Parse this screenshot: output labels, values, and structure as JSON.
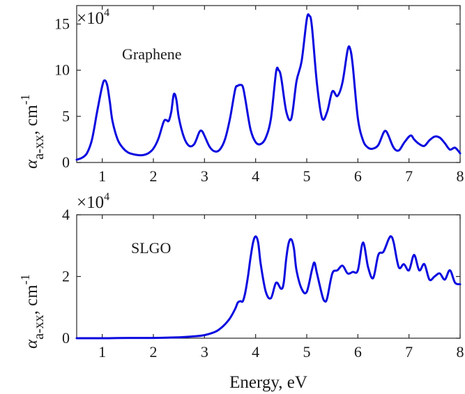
{
  "figure": {
    "xlabel": "Energy, eV"
  },
  "chart_data": [
    {
      "type": "line",
      "panel_label": "Graphene",
      "ylabel": {
        "main": "α",
        "subscript": "a-xx",
        "suffix": ", cm",
        "superscript": "-1"
      },
      "y_scale_text": {
        "base": "×10",
        "exponent": "4"
      },
      "xlim": [
        0.5,
        8
      ],
      "ylim": [
        0,
        17
      ],
      "x_ticks": [
        1,
        2,
        3,
        4,
        5,
        6,
        7,
        8
      ],
      "x_tick_labels": [
        "1",
        "2",
        "3",
        "4",
        "5",
        "6",
        "7",
        "8"
      ],
      "y_ticks": [
        0,
        5,
        10,
        15
      ],
      "y_tick_labels": [
        "0",
        "5",
        "10",
        "15"
      ],
      "grid": false,
      "color": "#0a0ae0",
      "x": [
        0.5,
        0.6,
        0.7,
        0.8,
        0.9,
        1.0,
        1.05,
        1.1,
        1.15,
        1.2,
        1.3,
        1.4,
        1.5,
        1.6,
        1.7,
        1.8,
        1.9,
        2.0,
        2.1,
        2.2,
        2.25,
        2.3,
        2.35,
        2.4,
        2.45,
        2.5,
        2.6,
        2.7,
        2.8,
        2.9,
        2.95,
        3.0,
        3.1,
        3.2,
        3.3,
        3.4,
        3.5,
        3.6,
        3.65,
        3.7,
        3.75,
        3.8,
        3.9,
        4.0,
        4.1,
        4.2,
        4.3,
        4.4,
        4.45,
        4.5,
        4.6,
        4.7,
        4.8,
        4.9,
        5.0,
        5.05,
        5.1,
        5.2,
        5.3,
        5.4,
        5.5,
        5.6,
        5.7,
        5.8,
        5.85,
        5.9,
        6.0,
        6.1,
        6.2,
        6.3,
        6.4,
        6.5,
        6.55,
        6.6,
        6.7,
        6.8,
        6.9,
        7.0,
        7.05,
        7.1,
        7.2,
        7.3,
        7.4,
        7.5,
        7.6,
        7.7,
        7.8,
        7.9,
        8.0
      ],
      "y": [
        0.3,
        0.5,
        1.0,
        2.5,
        5.5,
        8.3,
        8.9,
        8.3,
        6.5,
        4.5,
        2.5,
        1.6,
        1.1,
        0.9,
        0.8,
        0.8,
        1.0,
        1.5,
        2.6,
        4.4,
        4.6,
        4.5,
        5.5,
        7.4,
        6.8,
        4.8,
        2.7,
        1.8,
        2.0,
        3.3,
        3.4,
        2.9,
        1.7,
        1.2,
        1.4,
        2.5,
        4.8,
        7.9,
        8.3,
        8.4,
        8.2,
        6.8,
        3.6,
        2.2,
        2.0,
        2.7,
        4.8,
        9.8,
        10.0,
        9.2,
        5.5,
        4.8,
        8.8,
        11.0,
        15.5,
        15.9,
        14.8,
        8.5,
        4.8,
        5.5,
        7.7,
        7.2,
        8.7,
        12.2,
        12.3,
        10.5,
        4.8,
        2.4,
        1.6,
        1.5,
        1.9,
        3.2,
        3.4,
        2.9,
        1.6,
        1.3,
        2.1,
        2.8,
        2.9,
        2.5,
        2.0,
        1.8,
        2.4,
        2.8,
        2.7,
        2.1,
        1.4,
        1.6,
        1.0
      ]
    },
    {
      "type": "line",
      "panel_label": "SLGO",
      "ylabel": {
        "main": "α",
        "subscript": "a-xx",
        "suffix": ", cm",
        "superscript": "-1"
      },
      "y_scale_text": {
        "base": "×10",
        "exponent": "4"
      },
      "xlim": [
        0.5,
        8
      ],
      "ylim": [
        0,
        4
      ],
      "x_ticks": [
        1,
        2,
        3,
        4,
        5,
        6,
        7,
        8
      ],
      "x_tick_labels": [
        "1",
        "2",
        "3",
        "4",
        "5",
        "6",
        "7",
        "8"
      ],
      "y_ticks": [
        0,
        2,
        4
      ],
      "y_tick_labels": [
        "0",
        "2",
        "4"
      ],
      "grid": false,
      "color": "#0a0ae0",
      "x": [
        0.5,
        1.0,
        1.5,
        2.0,
        2.5,
        2.8,
        3.0,
        3.2,
        3.3,
        3.4,
        3.5,
        3.6,
        3.65,
        3.7,
        3.75,
        3.8,
        3.85,
        3.9,
        3.95,
        4.0,
        4.05,
        4.1,
        4.2,
        4.3,
        4.4,
        4.5,
        4.55,
        4.6,
        4.65,
        4.7,
        4.75,
        4.8,
        4.9,
        5.0,
        5.1,
        5.15,
        5.2,
        5.3,
        5.35,
        5.4,
        5.5,
        5.6,
        5.7,
        5.8,
        5.9,
        6.0,
        6.1,
        6.2,
        6.3,
        6.4,
        6.5,
        6.6,
        6.65,
        6.7,
        6.8,
        6.9,
        7.0,
        7.1,
        7.2,
        7.3,
        7.4,
        7.5,
        7.6,
        7.7,
        7.8,
        7.9,
        8.0
      ],
      "y": [
        0.0,
        0.0,
        0.01,
        0.01,
        0.03,
        0.06,
        0.1,
        0.2,
        0.3,
        0.45,
        0.65,
        0.95,
        1.15,
        1.2,
        1.2,
        1.5,
        2.0,
        2.6,
        3.1,
        3.3,
        3.1,
        2.4,
        1.5,
        1.3,
        1.8,
        1.6,
        1.8,
        2.6,
        3.1,
        3.2,
        2.9,
        2.2,
        1.6,
        1.5,
        2.2,
        2.45,
        2.1,
        1.4,
        1.2,
        1.3,
        2.1,
        2.2,
        2.35,
        2.1,
        2.15,
        2.2,
        3.1,
        2.3,
        1.95,
        2.7,
        2.8,
        3.2,
        3.3,
        3.1,
        2.3,
        2.4,
        2.2,
        2.7,
        2.2,
        2.4,
        1.9,
        2.0,
        2.1,
        1.9,
        2.2,
        1.8,
        1.75
      ]
    }
  ]
}
